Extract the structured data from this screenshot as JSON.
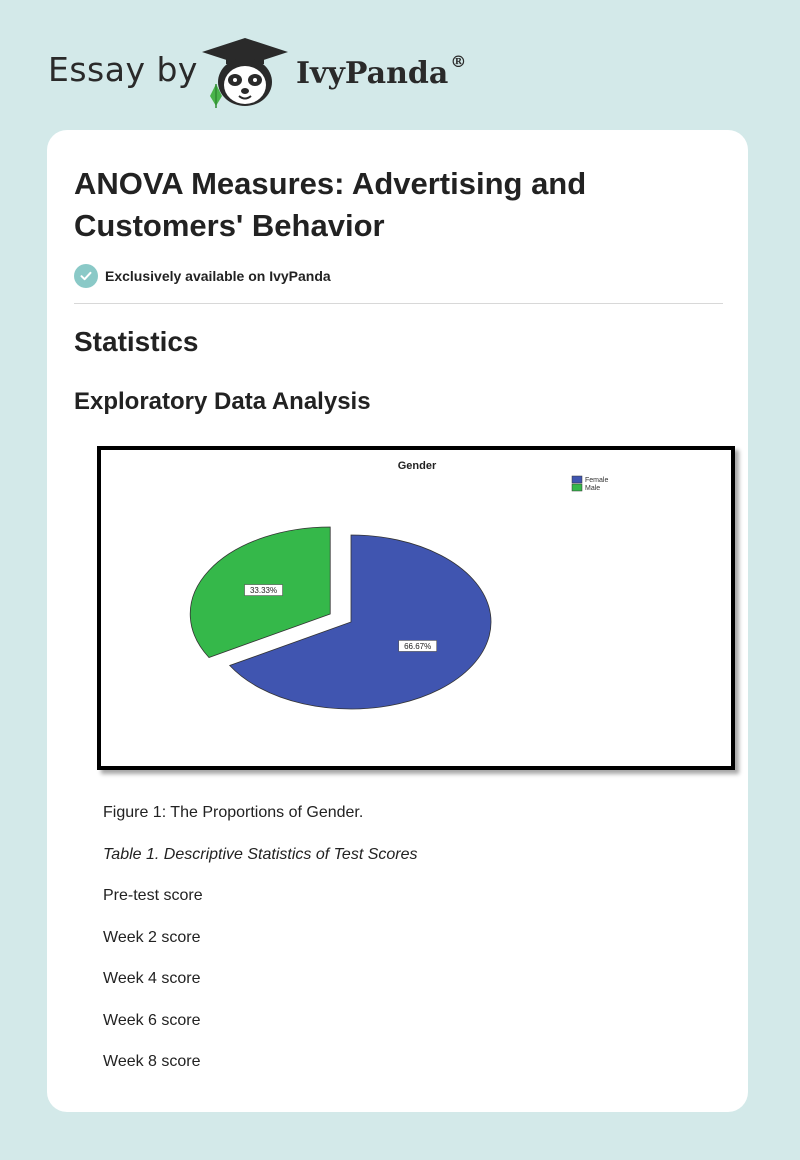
{
  "header": {
    "brand_prefix": "Essay by",
    "brand_name": "IvyPanda",
    "brand_reg": "®"
  },
  "article": {
    "title": "ANOVA Measures: Advertising and Customers' Behavior",
    "badge": "Exclusively available on IvyPanda",
    "section_heading": "Statistics",
    "subsection_heading": "Exploratory Data Analysis",
    "figure_caption": "Figure 1: The Proportions of Gender.",
    "table_caption": "Table 1. Descriptive Statistics of Test Scores",
    "table_rows": [
      "Pre-test score",
      "Week 2 score",
      "Week 4 score",
      "Week 6 score",
      "Week 8 score"
    ]
  },
  "colors": {
    "page_bg": "#d3e9e9",
    "badge": "#8ac9c7",
    "female": "#4055b0",
    "male": "#35b84a"
  },
  "chart_data": {
    "type": "pie",
    "title": "Gender",
    "legend_position": "top-right",
    "slices": [
      {
        "name": "Female",
        "value": 66.67,
        "label": "66.67%",
        "color": "#4055b0"
      },
      {
        "name": "Male",
        "value": 33.33,
        "label": "33.33%",
        "color": "#35b84a",
        "exploded": true
      }
    ]
  }
}
